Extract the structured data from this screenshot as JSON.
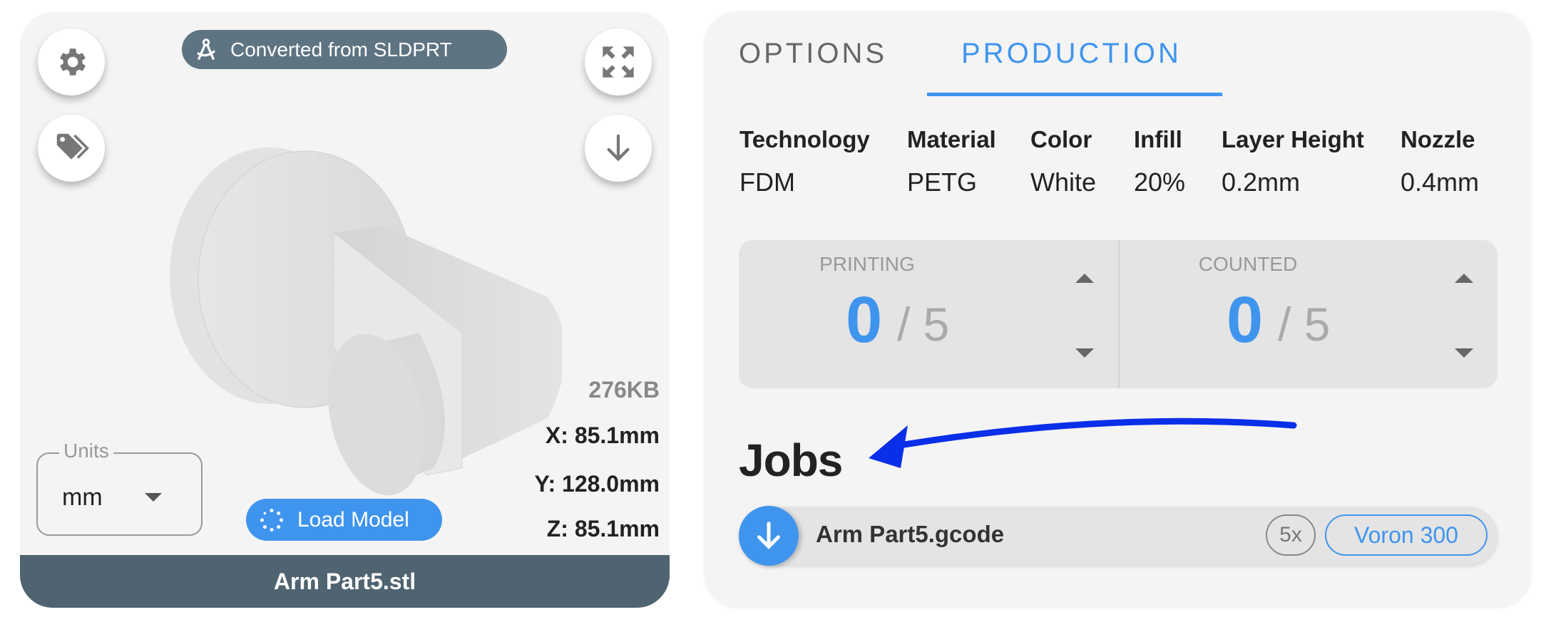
{
  "viewer": {
    "badge": "Converted from SLDPRT",
    "file_size": "276KB",
    "dimensions": {
      "x": "X: 85.1mm",
      "y": "Y: 128.0mm",
      "z": "Z: 85.1mm"
    },
    "units": {
      "label": "Units",
      "value": "mm"
    },
    "load_model_label": "Load Model",
    "file_name": "Arm Part5.stl",
    "icons": [
      "gear-icon",
      "tags-icon",
      "expand-icon",
      "download-icon",
      "compass-icon",
      "spinner-icon"
    ]
  },
  "panel": {
    "tabs": [
      {
        "label": "OPTIONS",
        "active": false
      },
      {
        "label": "PRODUCTION",
        "active": true
      }
    ],
    "specs": [
      {
        "header": "Technology",
        "value": "FDM"
      },
      {
        "header": "Material",
        "value": "PETG"
      },
      {
        "header": "Color",
        "value": "White"
      },
      {
        "header": "Infill",
        "value": "20%"
      },
      {
        "header": "Layer Height",
        "value": "0.2mm"
      },
      {
        "header": "Nozzle",
        "value": "0.4mm"
      }
    ],
    "counters": [
      {
        "label": "PRINTING",
        "value": "0",
        "total": "/ 5"
      },
      {
        "label": "COUNTED",
        "value": "0",
        "total": "/ 5"
      }
    ],
    "jobs_title": "Jobs",
    "jobs": [
      {
        "name": "Arm Part5.gcode",
        "quantity": "5x",
        "printer": "Voron 300"
      }
    ]
  },
  "colors": {
    "accent": "#3f95ee",
    "badge": "#5e7482",
    "footer": "#4f6370",
    "annotation_arrow": "#0a2fe8"
  }
}
